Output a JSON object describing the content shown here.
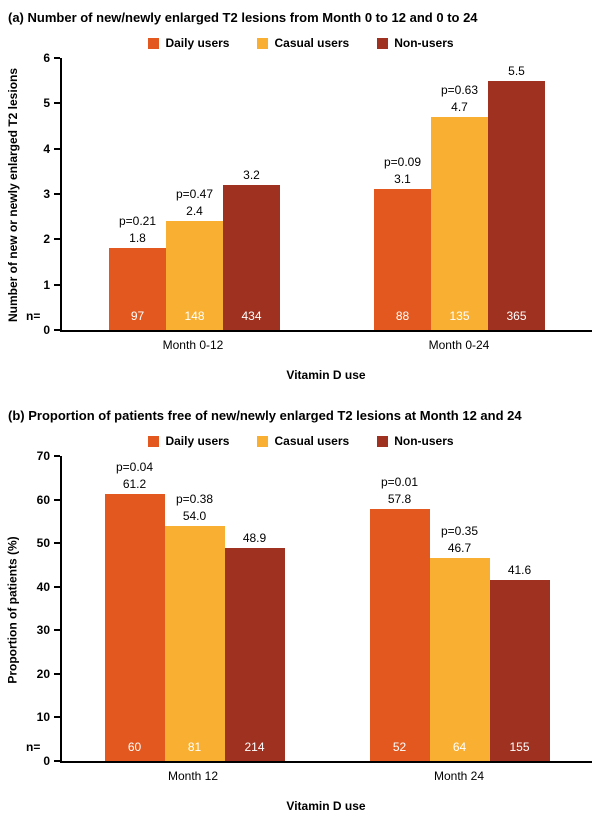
{
  "chart_data": [
    {
      "type": "bar",
      "tag": "(a)",
      "title": "Number of new/newly enlarged T2 lesions from Month 0 to 12 and 0 to 24",
      "ylabel": "Number of new or newly enlarged T2 lesions",
      "xlabel": "Vitamin D use",
      "ylim": [
        0,
        6
      ],
      "yticks": [
        0,
        1,
        2,
        3,
        4,
        5,
        6
      ],
      "grid": false,
      "legend_position": "top-center",
      "categories": [
        "Month 0-12",
        "Month 0-24"
      ],
      "n_label": "n=",
      "series": [
        {
          "name": "Daily users",
          "color": "#E2581F",
          "values": [
            1.8,
            3.1
          ],
          "value_labels": [
            "1.8",
            "3.1"
          ],
          "p_labels": [
            "p=0.21",
            "p=0.09"
          ],
          "n": [
            "97",
            "88"
          ]
        },
        {
          "name": "Casual users",
          "color": "#F9B032",
          "values": [
            2.4,
            4.7
          ],
          "value_labels": [
            "2.4",
            "4.7"
          ],
          "p_labels": [
            "p=0.47",
            "p=0.63"
          ],
          "n": [
            "148",
            "135"
          ]
        },
        {
          "name": "Non-users",
          "color": "#9E311F",
          "values": [
            3.2,
            5.5
          ],
          "value_labels": [
            "3.2",
            "5.5"
          ],
          "p_labels": [
            null,
            null
          ],
          "n": [
            "434",
            "365"
          ]
        }
      ]
    },
    {
      "type": "bar",
      "tag": "(b)",
      "title": "Proportion of patients free of new/newly enlarged T2 lesions at Month 12 and 24",
      "ylabel": "Proportion of patients (%)",
      "xlabel": "Vitamin D use",
      "ylim": [
        0,
        70
      ],
      "yticks": [
        0,
        10,
        20,
        30,
        40,
        50,
        60,
        70
      ],
      "grid": false,
      "legend_position": "top-center",
      "categories": [
        "Month 12",
        "Month 24"
      ],
      "n_label": "n=",
      "series": [
        {
          "name": "Daily users",
          "color": "#E2581F",
          "values": [
            61.2,
            57.8
          ],
          "value_labels": [
            "61.2",
            "57.8"
          ],
          "p_labels": [
            "p=0.04",
            "p=0.01"
          ],
          "n": [
            "60",
            "52"
          ]
        },
        {
          "name": "Casual users",
          "color": "#F9B032",
          "values": [
            54.0,
            46.7
          ],
          "value_labels": [
            "54.0",
            "46.7"
          ],
          "p_labels": [
            "p=0.38",
            "p=0.35"
          ],
          "n": [
            "81",
            "64"
          ]
        },
        {
          "name": "Non-users",
          "color": "#9E311F",
          "values": [
            48.9,
            41.6
          ],
          "value_labels": [
            "48.9",
            "41.6"
          ],
          "p_labels": [
            null,
            null
          ],
          "n": [
            "214",
            "155"
          ]
        }
      ]
    }
  ]
}
